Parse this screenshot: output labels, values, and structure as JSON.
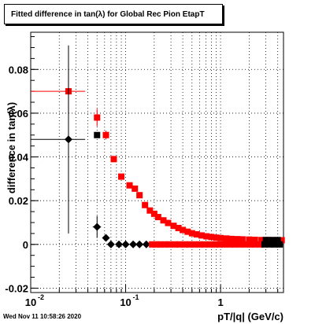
{
  "title": "Fitted difference in tan(λ) for Global Rec Pion EtapT",
  "footer_timestamp": "Wed Nov 11 10:58:26 2020",
  "chart_data": {
    "type": "scatter",
    "title": "Fitted difference in tan(λ) for Global Rec Pion EtapT",
    "xlabel": "pT/|q| (GeV/c)",
    "ylabel": "difference in tan(λ)",
    "xscale": "log",
    "xlim": [
      0.01,
      4.6
    ],
    "ylim": [
      -0.022,
      0.097
    ],
    "grid": true,
    "y_ticks": [
      -0.02,
      0,
      0.02,
      0.04,
      0.06,
      0.08
    ],
    "y_tick_labels": [
      "-0.02",
      "0",
      "0.02",
      "0.04",
      "0.06",
      "0.08"
    ],
    "x_tick_labels": [
      {
        "value": 0.01,
        "label": "10"
      },
      {
        "value": 0.1,
        "label": "10"
      },
      {
        "value": 1,
        "label": "1"
      }
    ],
    "x_tick_exponents": [
      "-2",
      "-1"
    ],
    "series": [
      {
        "marker": "square",
        "color": "#ff0000",
        "points": [
          {
            "x": 0.025,
            "y": 0.07,
            "xerr_lo": 0.015,
            "xerr_hi": 0.0125,
            "yerr": 0.01
          },
          {
            "x": 0.05,
            "y": 0.058,
            "xerr_lo": 0.0,
            "xerr_hi": 0.0,
            "yerr": 0.004
          },
          {
            "x": 0.062,
            "y": 0.05,
            "xerr_lo": 0.0,
            "xerr_hi": 0.0,
            "yerr": 0.002
          },
          {
            "x": 0.075,
            "y": 0.039,
            "yerr": 0.0
          },
          {
            "x": 0.09,
            "y": 0.031,
            "yerr": 0.0
          },
          {
            "x": 0.11,
            "y": 0.027,
            "yerr": 0.0
          },
          {
            "x": 0.125,
            "y": 0.0255,
            "yerr": 0.0
          },
          {
            "x": 0.14,
            "y": 0.0225,
            "yerr": 0.0
          },
          {
            "x": 0.16,
            "y": 0.018,
            "yerr": 0.0
          },
          {
            "x": 0.18,
            "y": 0.0155,
            "yerr": 0.0
          },
          {
            "x": 0.2,
            "y": 0.014,
            "yerr": 0.0
          },
          {
            "x": 0.22,
            "y": 0.0125,
            "yerr": 0.0
          },
          {
            "x": 0.25,
            "y": 0.011,
            "yerr": 0.0
          },
          {
            "x": 0.28,
            "y": 0.0098,
            "yerr": 0.0
          },
          {
            "x": 0.32,
            "y": 0.0085,
            "yerr": 0.0
          },
          {
            "x": 0.36,
            "y": 0.0075,
            "yerr": 0.0
          },
          {
            "x": 0.4,
            "y": 0.0066,
            "yerr": 0.0
          },
          {
            "x": 0.45,
            "y": 0.0058,
            "yerr": 0.0
          },
          {
            "x": 0.5,
            "y": 0.0051,
            "yerr": 0.0
          },
          {
            "x": 0.56,
            "y": 0.0046,
            "yerr": 0.0
          },
          {
            "x": 0.63,
            "y": 0.0041,
            "yerr": 0.0
          },
          {
            "x": 0.71,
            "y": 0.0037,
            "yerr": 0.0
          },
          {
            "x": 0.8,
            "y": 0.0034,
            "yerr": 0.0
          },
          {
            "x": 0.9,
            "y": 0.0031,
            "yerr": 0.0
          },
          {
            "x": 1.0,
            "y": 0.0029,
            "yerr": 0.0
          },
          {
            "x": 1.15,
            "y": 0.0027,
            "yerr": 0.0
          },
          {
            "x": 1.3,
            "y": 0.0025,
            "yerr": 0.0
          },
          {
            "x": 1.5,
            "y": 0.0024,
            "yerr": 0.0
          },
          {
            "x": 1.7,
            "y": 0.0023,
            "yerr": 0.0
          },
          {
            "x": 2.0,
            "y": 0.0022,
            "yerr": 0.0
          },
          {
            "x": 2.3,
            "y": 0.0021,
            "yerr": 0.0
          },
          {
            "x": 2.7,
            "y": 0.002,
            "yerr": 0.0
          },
          {
            "x": 3.2,
            "y": 0.002,
            "yerr": 0.0
          },
          {
            "x": 3.8,
            "y": 0.0019,
            "yerr": 0.0
          },
          {
            "x": 4.4,
            "y": 0.0019,
            "yerr": 0.0
          }
        ]
      },
      {
        "marker": "diamond",
        "color": "#000000",
        "points": [
          {
            "x": 0.025,
            "y": 0.048,
            "xerr_lo": 0.015,
            "xerr_hi": 0.0125,
            "yerr": 0.043
          },
          {
            "x": 0.05,
            "y": 0.008,
            "xerr_lo": 0.005,
            "xerr_hi": 0.005,
            "yerr": 0.005
          },
          {
            "x": 0.062,
            "y": 0.003,
            "yerr": 0.0015
          },
          {
            "x": 0.07,
            "y": 0.0,
            "yerr": 0.0
          },
          {
            "x": 0.085,
            "y": 0.0,
            "yerr": 0.0
          },
          {
            "x": 0.1,
            "y": 0.0,
            "yerr": 0.0
          },
          {
            "x": 0.12,
            "y": 0.0,
            "yerr": 0.0
          },
          {
            "x": 0.14,
            "y": 0.0,
            "yerr": 0.0
          },
          {
            "x": 0.165,
            "y": 0.0,
            "yerr": 0.0
          }
        ]
      },
      {
        "marker": "square",
        "color": "#000000",
        "points": [
          {
            "x": 0.05,
            "y": 0.05,
            "yerr": 0.0
          },
          {
            "x": 3.0,
            "y": 0.002,
            "yerr": 0.0
          },
          {
            "x": 3.5,
            "y": 0.002,
            "yerr": 0.0
          },
          {
            "x": 4.0,
            "y": 0.002,
            "yerr": 0.0
          }
        ]
      },
      {
        "marker": "square",
        "color": "#ff0000",
        "points": [
          {
            "x": 0.19,
            "y": 0.0
          },
          {
            "x": 0.21,
            "y": 0.0
          },
          {
            "x": 0.23,
            "y": 0.0
          },
          {
            "x": 0.26,
            "y": 0.0
          },
          {
            "x": 0.29,
            "y": 0.0
          },
          {
            "x": 0.33,
            "y": 0.0
          },
          {
            "x": 0.37,
            "y": 0.0
          },
          {
            "x": 0.42,
            "y": 0.0
          },
          {
            "x": 0.47,
            "y": 0.0
          },
          {
            "x": 0.53,
            "y": 0.0
          },
          {
            "x": 0.6,
            "y": 0.0
          },
          {
            "x": 0.68,
            "y": 0.0
          },
          {
            "x": 0.77,
            "y": 0.0
          },
          {
            "x": 0.87,
            "y": 0.0
          },
          {
            "x": 0.98,
            "y": 0.0
          },
          {
            "x": 1.1,
            "y": 0.0
          },
          {
            "x": 1.25,
            "y": 0.0
          },
          {
            "x": 1.4,
            "y": 0.0
          },
          {
            "x": 1.6,
            "y": 0.0
          },
          {
            "x": 1.8,
            "y": 0.0
          },
          {
            "x": 2.05,
            "y": 0.0
          },
          {
            "x": 2.3,
            "y": 0.0
          },
          {
            "x": 2.6,
            "y": 0.0
          }
        ]
      },
      {
        "marker": "square",
        "color": "#000000",
        "points": [
          {
            "x": 2.9,
            "y": 0.0
          },
          {
            "x": 3.3,
            "y": 0.0
          },
          {
            "x": 3.7,
            "y": 0.0
          },
          {
            "x": 4.2,
            "y": 0.0
          }
        ]
      }
    ]
  }
}
